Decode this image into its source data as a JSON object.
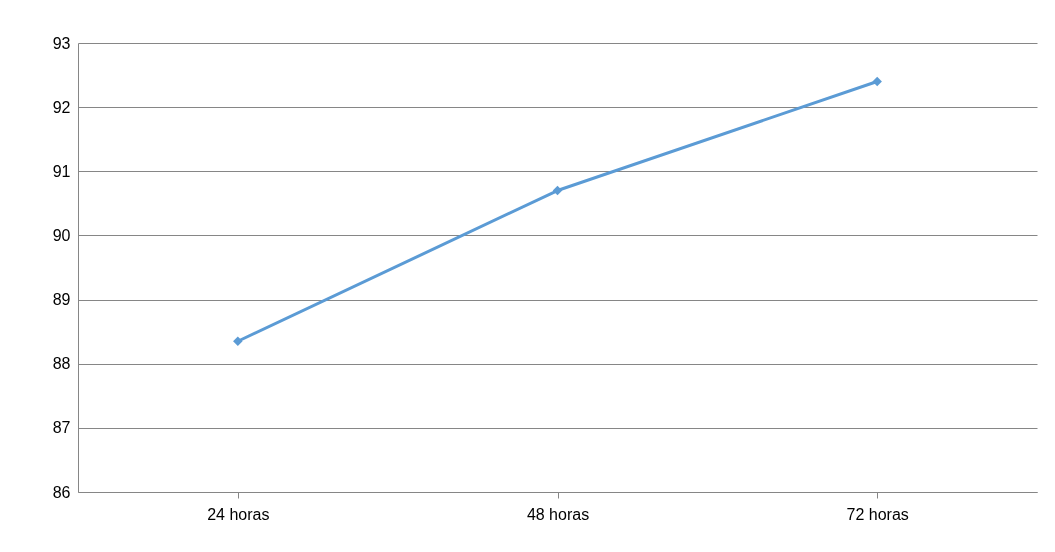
{
  "chart_data": {
    "type": "line",
    "categories": [
      "24 horas",
      "48 horas",
      "72 horas"
    ],
    "series": [
      {
        "color": "#5b9bd5",
        "values": [
          88.35,
          90.7,
          92.4
        ]
      }
    ],
    "ylim": [
      86,
      93
    ],
    "yticks": [
      86,
      87,
      88,
      89,
      90,
      91,
      92,
      93
    ],
    "grid": "y",
    "marker": "diamond",
    "line_style": "solid"
  }
}
